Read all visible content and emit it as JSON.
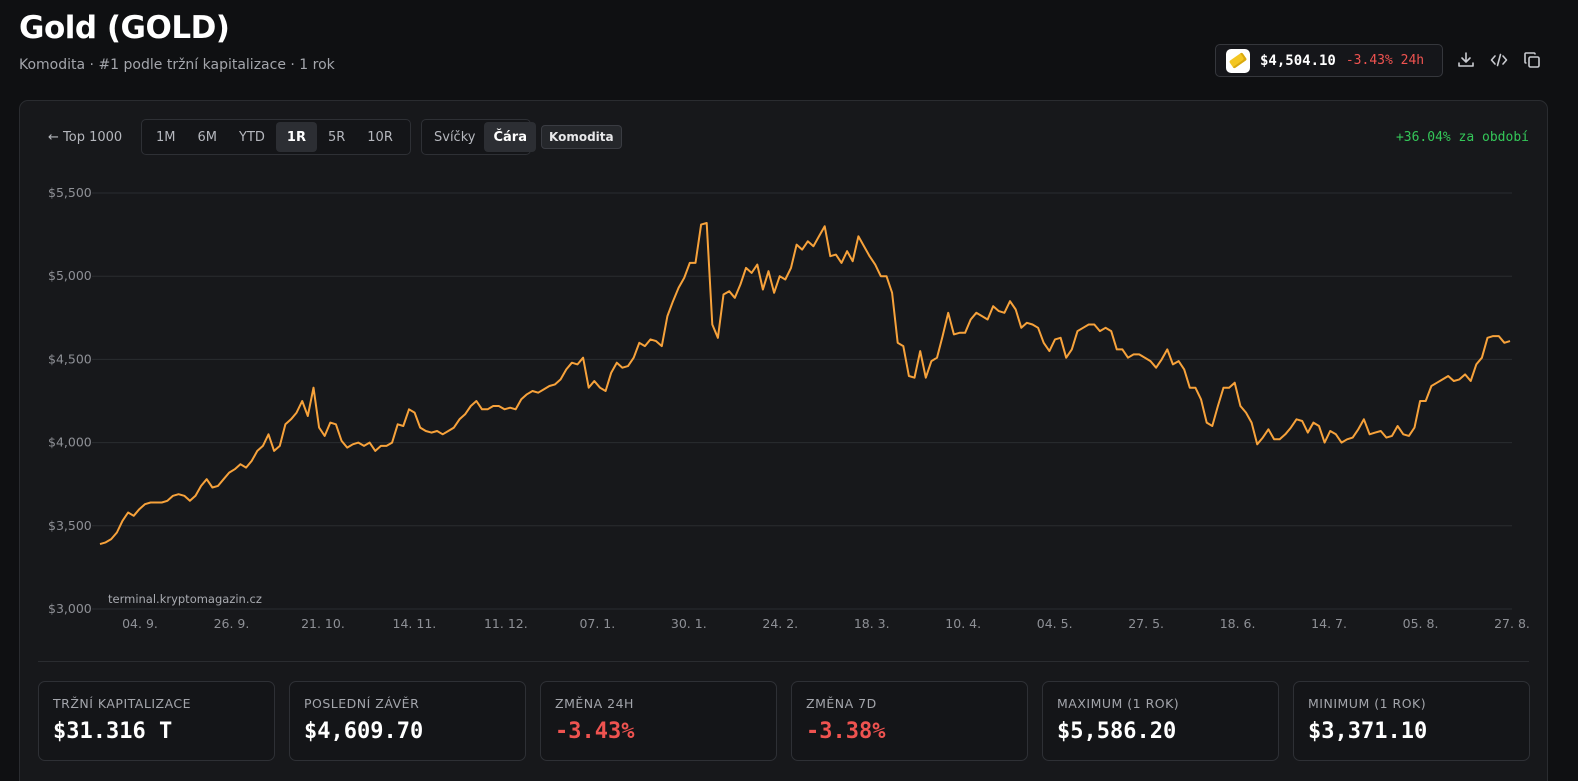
{
  "header": {
    "title": "Gold (GOLD)",
    "subtitle": "Komodita · #1 podle tržní kapitalizace · 1 rok"
  },
  "price_pill": {
    "price": "$4,504.10",
    "change": "-3.43% 24h",
    "icon": "gold-bar-icon"
  },
  "toolbar_icons": [
    "download-icon",
    "embed-code-icon",
    "copy-icon"
  ],
  "controls": {
    "back_link": "← Top 1000",
    "ranges": [
      "1M",
      "6M",
      "YTD",
      "1R",
      "5R",
      "10R"
    ],
    "active_range": "1R",
    "chart_types": [
      "Svíčky",
      "Čára"
    ],
    "active_chart_type": "Čára",
    "tag": "Komodita",
    "period_change": "+36.04% za období"
  },
  "watermark": "terminal.kryptomagazin.cz",
  "colors": {
    "line": "#f7a23b",
    "positive": "#34c759",
    "negative": "#ef5350"
  },
  "chart_data": {
    "type": "line",
    "y_tick_labels": [
      "$5,500",
      "$5,000",
      "$4,500",
      "$4,000",
      "$3,500",
      "$3,000"
    ],
    "y_ticks": [
      5500,
      5000,
      4500,
      4000,
      3500,
      3000
    ],
    "ylim": [
      3000,
      5500
    ],
    "x_tick_labels": [
      "04. 9.",
      "26. 9.",
      "21. 10.",
      "14. 11.",
      "11. 12.",
      "07. 1.",
      "30. 1.",
      "24. 2.",
      "18. 3.",
      "10. 4.",
      "04. 5.",
      "27. 5.",
      "18. 6.",
      "14. 7.",
      "05. 8.",
      "27. 8."
    ],
    "grid": true,
    "series": [
      {
        "values": [
          3390,
          3400,
          3420,
          3460,
          3530,
          3580,
          3560,
          3600,
          3630,
          3640,
          3640,
          3640,
          3650,
          3680,
          3690,
          3680,
          3650,
          3680,
          3740,
          3780,
          3730,
          3740,
          3780,
          3820,
          3840,
          3870,
          3850,
          3890,
          3950,
          3980,
          4050,
          3950,
          3980,
          4110,
          4140,
          4180,
          4250,
          4160,
          4330,
          4090,
          4040,
          4120,
          4110,
          4010,
          3970,
          3990,
          4000,
          3980,
          4000,
          3950,
          3980,
          3980,
          4000,
          4110,
          4100,
          4200,
          4180,
          4090,
          4070,
          4060,
          4070,
          4050,
          4070,
          4090,
          4140,
          4170,
          4220,
          4250,
          4200,
          4200,
          4220,
          4220,
          4200,
          4210,
          4200,
          4260,
          4290,
          4310,
          4300,
          4320,
          4340,
          4350,
          4380,
          4440,
          4480,
          4470,
          4510,
          4330,
          4370,
          4330,
          4310,
          4420,
          4480,
          4450,
          4460,
          4510,
          4600,
          4580,
          4620,
          4610,
          4580,
          4760,
          4850,
          4930,
          4990,
          5080,
          5080,
          5310,
          5320,
          4710,
          4630,
          4890,
          4910,
          4870,
          4950,
          5050,
          5020,
          5070,
          4920,
          5030,
          4900,
          5000,
          4980,
          5050,
          5190,
          5160,
          5210,
          5180,
          5240,
          5300,
          5120,
          5130,
          5080,
          5150,
          5090,
          5240,
          5180,
          5120,
          5070,
          5000,
          5000,
          4900,
          4600,
          4580,
          4400,
          4390,
          4550,
          4390,
          4490,
          4510,
          4640,
          4780,
          4650,
          4660,
          4660,
          4740,
          4780,
          4760,
          4740,
          4820,
          4790,
          4780,
          4850,
          4800,
          4690,
          4720,
          4710,
          4690,
          4600,
          4550,
          4620,
          4630,
          4510,
          4560,
          4670,
          4690,
          4710,
          4710,
          4670,
          4690,
          4670,
          4560,
          4560,
          4510,
          4530,
          4530,
          4510,
          4490,
          4450,
          4500,
          4560,
          4470,
          4490,
          4440,
          4330,
          4330,
          4260,
          4120,
          4100,
          4220,
          4330,
          4330,
          4360,
          4220,
          4180,
          4120,
          3990,
          4030,
          4080,
          4020,
          4020,
          4050,
          4090,
          4140,
          4130,
          4060,
          4120,
          4100,
          4000,
          4070,
          4050,
          4000,
          4020,
          4030,
          4080,
          4140,
          4050,
          4060,
          4070,
          4030,
          4040,
          4100,
          4050,
          4040,
          4090,
          4250,
          4250,
          4340,
          4360,
          4380,
          4400,
          4370,
          4380,
          4410,
          4370,
          4470,
          4510,
          4630,
          4640,
          4640,
          4600,
          4610
        ]
      }
    ]
  },
  "stats": [
    {
      "label": "TRŽNÍ KAPITALIZACE",
      "value": "$31.316 T",
      "negative": false
    },
    {
      "label": "POSLEDNÍ ZÁVĚR",
      "value": "$4,609.70",
      "negative": false
    },
    {
      "label": "ZMĚNA 24H",
      "value": "-3.43%",
      "negative": true
    },
    {
      "label": "ZMĚNA 7D",
      "value": "-3.38%",
      "negative": true
    },
    {
      "label": "MAXIMUM (1 ROK)",
      "value": "$5,586.20",
      "negative": false
    },
    {
      "label": "MINIMUM (1 ROK)",
      "value": "$3,371.10",
      "negative": false
    }
  ]
}
